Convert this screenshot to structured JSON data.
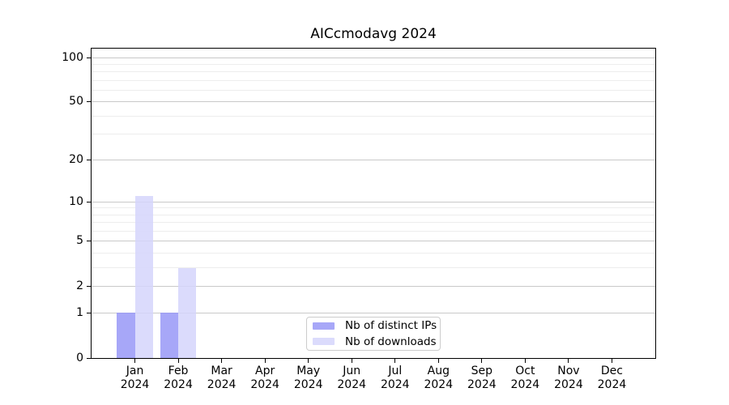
{
  "chart_data": {
    "type": "bar",
    "title": "AICcmodavg 2024",
    "categories": [
      "Jan 2024",
      "Feb 2024",
      "Mar 2024",
      "Apr 2024",
      "May 2024",
      "Jun 2024",
      "Jul 2024",
      "Aug 2024",
      "Sep 2024",
      "Oct 2024",
      "Nov 2024",
      "Dec 2024"
    ],
    "series": [
      {
        "name": "Nb of distinct IPs",
        "color": "rgba(148,148,246,0.82)",
        "values": [
          1,
          1,
          0,
          0,
          0,
          0,
          0,
          0,
          0,
          0,
          0,
          0
        ]
      },
      {
        "name": "Nb of downloads",
        "color": "rgba(213,213,252,0.85)",
        "values": [
          11,
          3,
          0,
          0,
          0,
          0,
          0,
          0,
          0,
          0,
          0,
          0
        ]
      }
    ],
    "yscale": "log1p",
    "ylim": [
      0,
      114
    ],
    "y_major_ticks": [
      0,
      1,
      2,
      5,
      10,
      20,
      50,
      100
    ],
    "y_minor_ticks": [
      3,
      4,
      6,
      7,
      8,
      9,
      30,
      40,
      60,
      70,
      80,
      90
    ],
    "xlabel": "",
    "ylabel": "",
    "grid": "horizontal",
    "legend_position": "lower center"
  },
  "colors": {
    "background": "#ffffff",
    "axis": "#000000",
    "grid_major": "#c9c9c9",
    "grid_minor": "#ededed",
    "legend_border": "#cccccc"
  }
}
